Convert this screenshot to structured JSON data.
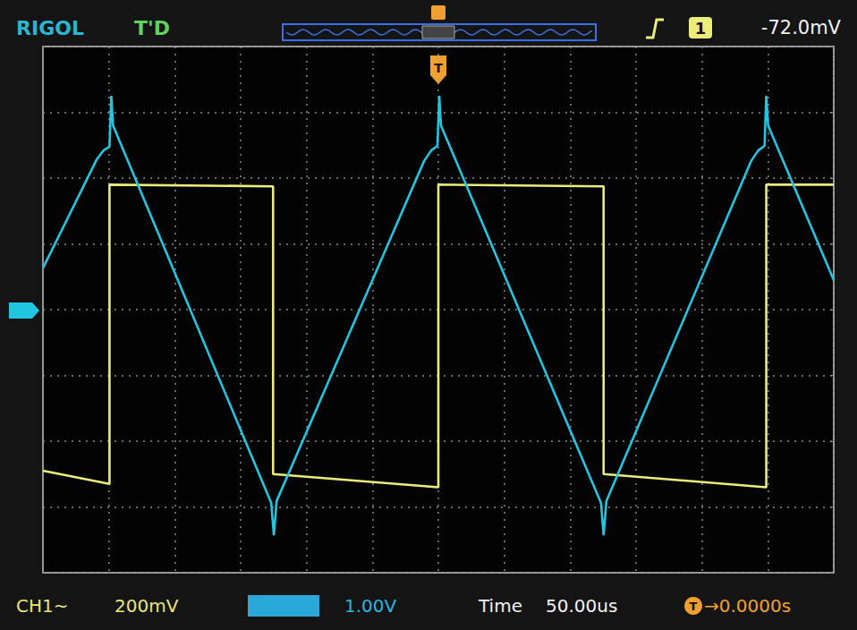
{
  "chart_data": {
    "type": "line",
    "annotations": {
      "brand": "RIGOL",
      "status": "T'D",
      "trigger_source": "1",
      "trigger_level": "-72.0mV",
      "trigger_marker": "T",
      "ch1": "CH1~",
      "ch1_scale": "200mV",
      "ch2_scale": "1.00V",
      "time_label": "Time",
      "time_scale": "50.00us",
      "trigger_offset": "→0.0000s"
    },
    "xlim": [
      -300,
      300
    ],
    "xticks": [
      -300,
      -250,
      -200,
      -150,
      -100,
      -50,
      0,
      50,
      100,
      150,
      200,
      250,
      300
    ],
    "ylim": [
      -800,
      800
    ],
    "yticks": [
      -800,
      -600,
      -400,
      -200,
      0,
      200,
      400,
      600,
      800
    ],
    "y2lim": [
      -4,
      4
    ],
    "y2ticks": [
      -4,
      -3,
      -2,
      -1,
      0,
      1,
      2,
      3,
      4
    ],
    "grid": true,
    "tick_labels": false,
    "series": [
      {
        "color": "#ecec7a",
        "x": [
          -300,
          -249.5,
          -249.5,
          -125.4,
          -125.4,
          0,
          0,
          125.4,
          125.4,
          248.8,
          248.8,
          300
        ],
        "values": [
          -490,
          -530,
          380,
          375,
          -500,
          -540,
          380,
          375,
          -500,
          -540,
          380,
          380
        ]
      },
      {
        "color": "#22c6e0",
        "axis": "y2",
        "x": [
          -300,
          -259,
          -254,
          -249.5,
          -248.1,
          -246.8,
          -126.8,
          -124.8,
          -122.7,
          -10.8,
          -5.4,
          -0.7,
          0.7,
          2.0,
          123.4,
          125.4,
          127.5,
          237.3,
          242.7,
          247.5,
          248.8,
          250.2,
          300
        ],
        "values": [
          0.63,
          2.29,
          2.42,
          2.48,
          3.25,
          2.8,
          -2.94,
          -3.43,
          -2.91,
          2.26,
          2.42,
          2.49,
          3.25,
          2.8,
          -2.94,
          -3.43,
          -2.91,
          2.26,
          2.42,
          2.49,
          3.25,
          2.8,
          0.45
        ]
      }
    ]
  }
}
